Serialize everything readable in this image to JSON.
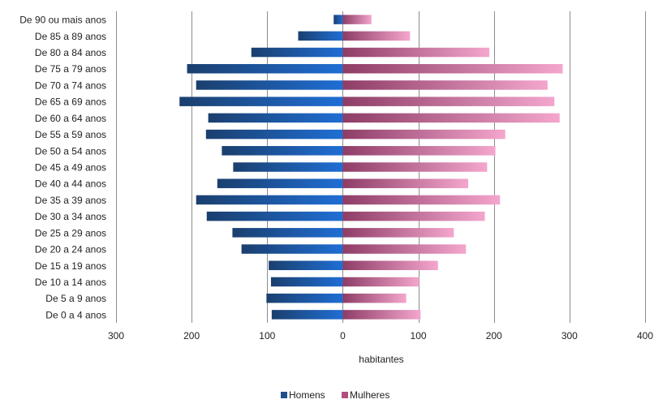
{
  "chart_data": {
    "type": "bar",
    "orientation": "horizontal",
    "xlabel": "habitantes",
    "xlim": [
      -300,
      400
    ],
    "xticks": [
      -300,
      -200,
      -100,
      0,
      100,
      200,
      300,
      400
    ],
    "xtick_labels": [
      "300",
      "200",
      "100",
      "0",
      "100",
      "200",
      "300",
      "400"
    ],
    "grid": true,
    "legend_position": "bottom-center",
    "categories": [
      "De 90 ou mais anos",
      "De 85 a 89 anos",
      "De 80 a 84 anos",
      "De 75 a 79 anos",
      "De 70 a 74 anos",
      "De 65 a 69 anos",
      "De 60 a 64 anos",
      "De 55 a 59 anos",
      "De 50 a 54 anos",
      "De 45 a 49 anos",
      "De 40 a 44 anos",
      "De 35 a 39 anos",
      "De 30 a 34 anos",
      "De 25 a 29 anos",
      "De 20 a 24 anos",
      "De 15 a 19 anos",
      "De 10 a 14 anos",
      "De 5 a 9 anos",
      "De 0 a 4 anos"
    ],
    "series": [
      {
        "name": "Homens",
        "color": "#1f4e8c",
        "values": [
          -12,
          -59,
          -121,
          -206,
          -194,
          -216,
          -178,
          -181,
          -160,
          -145,
          -166,
          -194,
          -180,
          -146,
          -134,
          -98,
          -95,
          -101,
          -94
        ]
      },
      {
        "name": "Mulheres",
        "color": "#b0507f",
        "values": [
          38,
          89,
          194,
          291,
          271,
          280,
          287,
          215,
          202,
          191,
          166,
          208,
          188,
          147,
          163,
          126,
          101,
          84,
          103
        ]
      }
    ]
  }
}
